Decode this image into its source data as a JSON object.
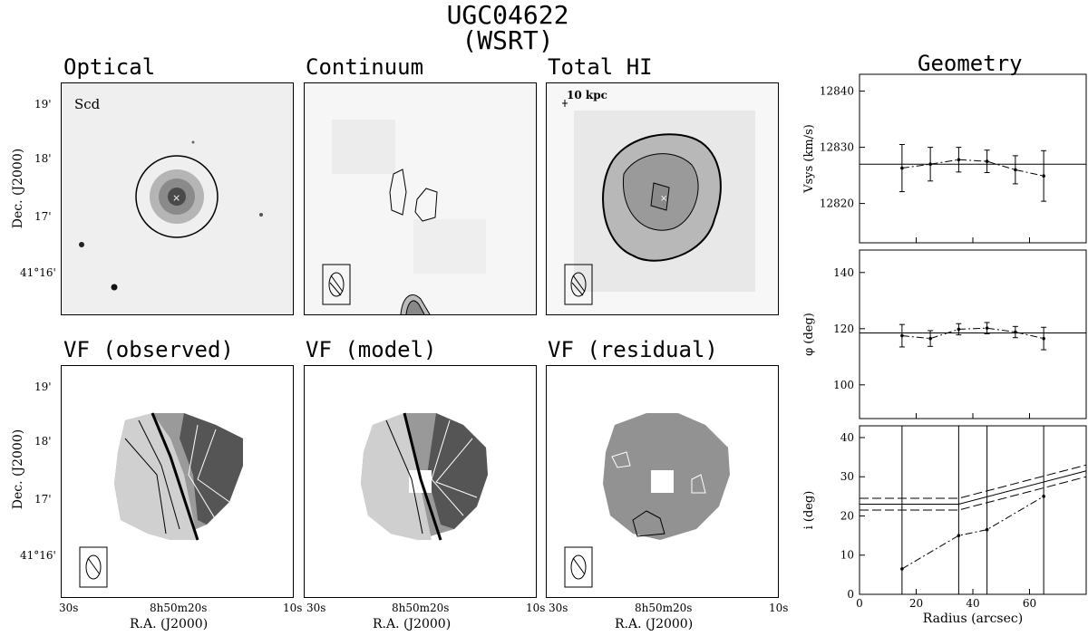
{
  "header": {
    "title": "UGC04622",
    "subtitle": "(WSRT)"
  },
  "panels": {
    "optical": {
      "title": "Optical",
      "note": "Scd"
    },
    "continuum": {
      "title": "Continuum"
    },
    "totalhi": {
      "title": "Total HI",
      "scalebar": "10 kpc"
    },
    "vfobs": {
      "title": "VF (observed)"
    },
    "vfmodel": {
      "title": "VF (model)"
    },
    "vfres": {
      "title": "VF (residual)"
    }
  },
  "axes": {
    "dec_label": "Dec. (J2000)",
    "ra_label": "R.A. (J2000)",
    "dec_ticks": [
      "19'",
      "18'",
      "17'",
      "41°16'"
    ],
    "ra_ticks": [
      "30s",
      "8h50m20s",
      "10s"
    ]
  },
  "geometry": {
    "title": "Geometry",
    "xlabel": "Radius (arcsec)"
  },
  "chart_data": [
    {
      "type": "line",
      "title": "",
      "ylabel": "Vsys (km/s)",
      "x": [
        15,
        25,
        35,
        45,
        55,
        65
      ],
      "values": [
        12826.3,
        12827.0,
        12827.8,
        12827.5,
        12826.0,
        12824.9
      ],
      "errors": [
        4.2,
        3.0,
        2.2,
        2.0,
        2.5,
        4.5
      ],
      "reference_line": 12827.0,
      "xlim": [
        0,
        80
      ],
      "ylim": [
        12813,
        12843
      ],
      "yticks": [
        12820,
        12830,
        12840
      ]
    },
    {
      "type": "line",
      "title": "",
      "ylabel": "φ (deg)",
      "x": [
        15,
        25,
        35,
        45,
        55,
        65
      ],
      "values": [
        117.5,
        116.5,
        119.8,
        120.2,
        118.8,
        116.5
      ],
      "errors": [
        4.0,
        2.8,
        2.0,
        2.0,
        2.0,
        4.0
      ],
      "reference_line": 118.5,
      "xlim": [
        0,
        80
      ],
      "ylim": [
        88,
        148
      ],
      "yticks": [
        100,
        120,
        140
      ]
    },
    {
      "type": "line",
      "title": "",
      "ylabel": "i (deg)",
      "xlabel": "Radius (arcsec)",
      "x": [
        15,
        35,
        45,
        65
      ],
      "values": [
        6.5,
        15.0,
        16.5,
        25.0
      ],
      "upper_line": [
        [
          0,
          24.5
        ],
        [
          35,
          24.5
        ],
        [
          80,
          33
        ]
      ],
      "lower_line": [
        [
          0,
          21.5
        ],
        [
          35,
          21.5
        ],
        [
          80,
          30
        ]
      ],
      "mid_line": [
        [
          0,
          23
        ],
        [
          35,
          23
        ],
        [
          80,
          31.5
        ]
      ],
      "vertical_markers": [
        15,
        35,
        45,
        65
      ],
      "xlim": [
        0,
        80
      ],
      "ylim": [
        0,
        43
      ],
      "yticks": [
        0,
        10,
        20,
        30,
        40
      ],
      "xticks": [
        0,
        20,
        40,
        60
      ]
    }
  ]
}
